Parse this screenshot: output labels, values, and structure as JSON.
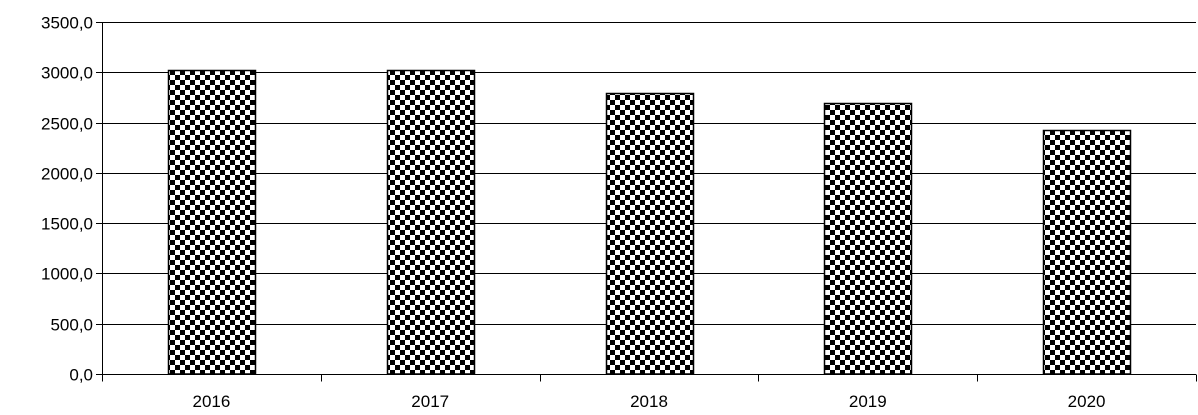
{
  "chart_data": {
    "type": "bar",
    "title": "",
    "xlabel": "",
    "ylabel": "",
    "categories": [
      "2016",
      "2017",
      "2018",
      "2019",
      "2020"
    ],
    "values": [
      3020,
      3020,
      2790,
      2690,
      2430
    ],
    "ylim": [
      0,
      3500
    ],
    "yticks": [
      0,
      500,
      1000,
      1500,
      2000,
      2500,
      3000,
      3500
    ],
    "ytick_labels": [
      "0,0",
      "500,0",
      "1000,0",
      "1500,0",
      "2000,0",
      "2500,0",
      "3000,0",
      "3500,0"
    ],
    "grid": true,
    "legend": "none",
    "bar_pattern": "black-white checkerboard"
  },
  "colors": {
    "bar_dark": "#000000",
    "bar_light": "#ffffff",
    "gridline": "#000000",
    "background": "#ffffff"
  }
}
